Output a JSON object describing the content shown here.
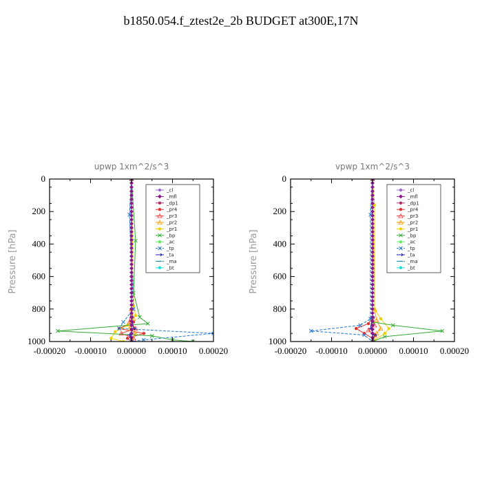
{
  "page": {
    "title": "b1850.054.f_ztest2e_2b  BUDGET at300E,17N"
  },
  "chart_data": [
    {
      "type": "line",
      "title": "upwp   1xm^2/s^3",
      "ylabel": "Pressure [hPa]",
      "xlim": [
        -0.0002,
        0.0002
      ],
      "ylim": [
        1000,
        0
      ],
      "xticks": [
        "-0.00020",
        "-0.00010",
        "0.00000",
        "0.00010",
        "0.00020"
      ],
      "yticks": [
        "0",
        "200",
        "400",
        "600",
        "800",
        "1000"
      ],
      "legend_position": "top-right",
      "series": [
        {
          "name": "_cl",
          "color": "#9966cc",
          "y": [
            0,
            300,
            600,
            800,
            900,
            950,
            1000
          ],
          "x": [
            0,
            0,
            0,
            0,
            0,
            0,
            0
          ]
        },
        {
          "name": "_mfl",
          "color": "#8a1a8a",
          "y": [
            0,
            300,
            600,
            800,
            900,
            950,
            1000
          ],
          "x": [
            0,
            0,
            0,
            0,
            0,
            0,
            0
          ]
        },
        {
          "name": "_dp1",
          "color": "#b0306a",
          "y": [
            0,
            300,
            600,
            800,
            900,
            950,
            1000
          ],
          "x": [
            0,
            0,
            0,
            0,
            0,
            0,
            0
          ]
        },
        {
          "name": "_pr4",
          "color": "#e03030",
          "y": [
            0,
            800,
            880,
            920,
            950,
            980,
            1000
          ],
          "x": [
            0,
            0,
            5e-06,
            -3e-05,
            3e-05,
            -1e-05,
            0
          ]
        },
        {
          "name": "_pr3",
          "color": "#ff3333",
          "y": [
            0,
            800,
            880,
            920,
            950,
            980,
            1000
          ],
          "x": [
            0,
            0,
            -5e-06,
            1e-05,
            -2.5e-05,
            5e-06,
            0
          ]
        },
        {
          "name": "_pr2",
          "color": "#ff9900",
          "y": [
            0,
            800,
            860,
            920,
            950,
            1000
          ],
          "x": [
            0,
            0,
            5e-06,
            -5e-06,
            1e-05,
            0
          ]
        },
        {
          "name": "_pr1",
          "color": "#f0d000",
          "y": [
            0,
            780,
            840,
            900,
            940,
            980,
            1000
          ],
          "x": [
            0,
            5e-06,
            1e-05,
            -1e-05,
            -4e-05,
            -5e-05,
            -2e-05
          ]
        },
        {
          "name": "_bp",
          "color": "#33aa33",
          "y": [
            0,
            380,
            700,
            850,
            890,
            935,
            965,
            990,
            1000
          ],
          "x": [
            0,
            1e-05,
            5e-06,
            2e-05,
            4e-05,
            -0.00018,
            5e-05,
            0.0001,
            0.00015
          ]
        },
        {
          "name": "_ac",
          "color": "#66ee66",
          "y": [
            0,
            800,
            950,
            1000
          ],
          "x": [
            0,
            0,
            0,
            0
          ]
        },
        {
          "name": "_tp",
          "color": "#2277cc",
          "y": [
            0,
            220,
            800,
            880,
            920,
            950,
            990,
            1000
          ],
          "x": [
            0,
            -5e-06,
            5e-06,
            -2e-05,
            -3e-05,
            0.0002,
            3e-05,
            0
          ]
        },
        {
          "name": "_ta",
          "color": "#1a1aaa",
          "y": [
            0,
            850,
            920,
            960,
            1000
          ],
          "x": [
            0,
            0,
            5e-06,
            -5e-06,
            0
          ]
        },
        {
          "name": "_ma",
          "color": "#2288aa",
          "y": [
            0,
            850,
            950,
            1000
          ],
          "x": [
            0,
            0,
            0,
            0
          ]
        },
        {
          "name": "_bt",
          "color": "#22dddd",
          "y": [
            0,
            850,
            950,
            1000
          ],
          "x": [
            0,
            0,
            0,
            0
          ]
        }
      ]
    },
    {
      "type": "line",
      "title": "vpwp   1xm^2/s^3",
      "ylabel": "Pressure [hPa]",
      "xlim": [
        -0.0002,
        0.0002
      ],
      "ylim": [
        1000,
        0
      ],
      "xticks": [
        "-0.00020",
        "-0.00010",
        "0.00000",
        "0.00010",
        "0.00020"
      ],
      "yticks": [
        "0",
        "200",
        "400",
        "600",
        "800",
        "1000"
      ],
      "legend_position": "top-right",
      "series": [
        {
          "name": "_cl",
          "color": "#9966cc",
          "y": [
            0,
            300,
            600,
            800,
            900,
            950,
            1000
          ],
          "x": [
            0,
            0,
            0,
            0,
            0,
            0,
            0
          ]
        },
        {
          "name": "_mfl",
          "color": "#8a1a8a",
          "y": [
            0,
            300,
            600,
            800,
            900,
            950,
            1000
          ],
          "x": [
            0,
            0,
            0,
            0,
            0,
            0,
            0
          ]
        },
        {
          "name": "_dp1",
          "color": "#b0306a",
          "y": [
            0,
            300,
            600,
            800,
            900,
            950,
            1000
          ],
          "x": [
            0,
            0,
            0,
            0,
            0,
            0,
            0
          ]
        },
        {
          "name": "_pr4",
          "color": "#e03030",
          "y": [
            0,
            850,
            890,
            920,
            950,
            980,
            1000
          ],
          "x": [
            0,
            0,
            -1e-05,
            -4e-05,
            -2e-05,
            0,
            0
          ]
        },
        {
          "name": "_pr3",
          "color": "#ff3333",
          "y": [
            0,
            850,
            900,
            930,
            960,
            1000
          ],
          "x": [
            0,
            0,
            5e-06,
            -1e-05,
            5e-06,
            0
          ]
        },
        {
          "name": "_pr2",
          "color": "#ff9900",
          "y": [
            0,
            800,
            870,
            920,
            950,
            1000
          ],
          "x": [
            0,
            5e-06,
            1e-05,
            2e-05,
            1e-05,
            0
          ]
        },
        {
          "name": "_pr1",
          "color": "#f0d000",
          "y": [
            0,
            160,
            800,
            860,
            920,
            950,
            990,
            1000
          ],
          "x": [
            0,
            5e-06,
            5e-06,
            2e-05,
            4e-05,
            3e-05,
            5e-06,
            0
          ]
        },
        {
          "name": "_bp",
          "color": "#33aa33",
          "y": [
            0,
            880,
            900,
            935,
            970,
            1000
          ],
          "x": [
            0,
            0,
            5e-05,
            0.00017,
            3e-05,
            0
          ]
        },
        {
          "name": "_ac",
          "color": "#66ee66",
          "y": [
            0,
            850,
            950,
            1000
          ],
          "x": [
            0,
            0,
            0,
            0
          ]
        },
        {
          "name": "_tp",
          "color": "#2277cc",
          "y": [
            0,
            220,
            860,
            900,
            935,
            960,
            1000
          ],
          "x": [
            0,
            -5e-06,
            -5e-06,
            -3e-05,
            -0.00015,
            -2e-05,
            0
          ]
        },
        {
          "name": "_ta",
          "color": "#1a1aaa",
          "y": [
            0,
            850,
            920,
            960,
            1000
          ],
          "x": [
            0,
            0,
            -5e-06,
            5e-06,
            0
          ]
        },
        {
          "name": "_ma",
          "color": "#2288aa",
          "y": [
            0,
            850,
            950,
            1000
          ],
          "x": [
            0,
            0,
            0,
            0
          ]
        },
        {
          "name": "_bt",
          "color": "#22dddd",
          "y": [
            0,
            850,
            950,
            1000
          ],
          "x": [
            0,
            0,
            0,
            0
          ]
        }
      ]
    }
  ]
}
